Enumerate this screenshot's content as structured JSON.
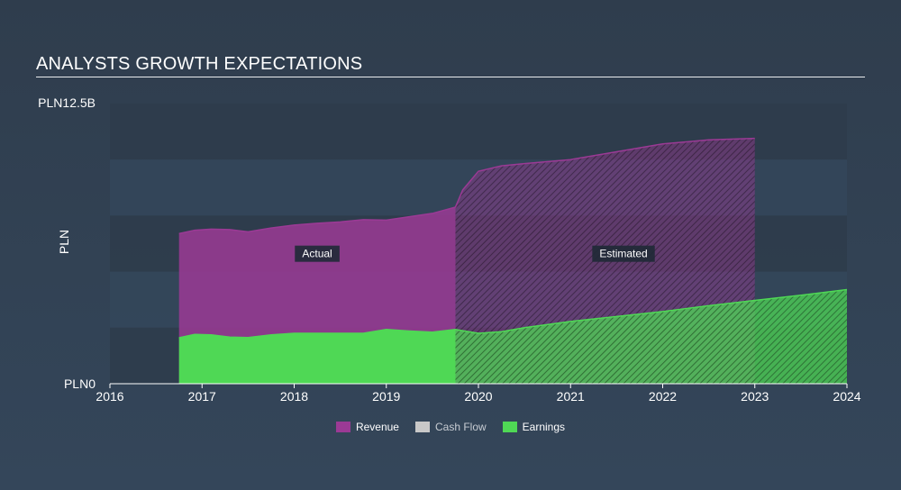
{
  "header": {
    "title": "ANALYSTS GROWTH EXPECTATIONS"
  },
  "colors": {
    "revenue": "#9b3a95",
    "cash_flow": "#c8c8c8",
    "earnings": "#4fd855",
    "band": "#2f3d4d",
    "label_bg": "#1f2a36"
  },
  "chart_data": {
    "type": "area",
    "title": "ANALYSTS GROWTH EXPECTATIONS",
    "ylabel": "PLN",
    "ytick_labels": [
      "PLN0",
      "PLN12.5B"
    ],
    "ylim": [
      0,
      12.5
    ],
    "xlim": [
      2016.0,
      2024.0
    ],
    "x_ticks": [
      2016,
      2017,
      2018,
      2019,
      2020,
      2021,
      2022,
      2023,
      2024
    ],
    "actual_end_x": 2019.75,
    "segment_labels": {
      "actual": "Actual",
      "estimated": "Estimated"
    },
    "grid": false,
    "legend_position": "bottom",
    "series": [
      {
        "name": "Revenue",
        "color": "#9b3a95",
        "points": [
          [
            2016.75,
            6.7
          ],
          [
            2016.92,
            6.85
          ],
          [
            2017.1,
            6.9
          ],
          [
            2017.3,
            6.88
          ],
          [
            2017.5,
            6.78
          ],
          [
            2017.75,
            6.95
          ],
          [
            2018.0,
            7.08
          ],
          [
            2018.25,
            7.16
          ],
          [
            2018.5,
            7.22
          ],
          [
            2018.75,
            7.32
          ],
          [
            2019.0,
            7.3
          ],
          [
            2019.25,
            7.45
          ],
          [
            2019.5,
            7.6
          ],
          [
            2019.75,
            7.88
          ],
          [
            2019.83,
            8.65
          ],
          [
            2020.0,
            9.48
          ],
          [
            2020.25,
            9.72
          ],
          [
            2020.5,
            9.82
          ],
          [
            2021.0,
            10.0
          ],
          [
            2021.5,
            10.35
          ],
          [
            2022.0,
            10.7
          ],
          [
            2022.5,
            10.88
          ],
          [
            2023.0,
            10.95
          ]
        ]
      },
      {
        "name": "Cash Flow",
        "color": "#c8c8c8",
        "points": []
      },
      {
        "name": "Earnings",
        "color": "#4fd855",
        "points": [
          [
            2016.75,
            2.05
          ],
          [
            2016.92,
            2.2
          ],
          [
            2017.1,
            2.18
          ],
          [
            2017.3,
            2.08
          ],
          [
            2017.5,
            2.06
          ],
          [
            2017.75,
            2.18
          ],
          [
            2018.0,
            2.25
          ],
          [
            2018.25,
            2.25
          ],
          [
            2018.5,
            2.25
          ],
          [
            2018.75,
            2.25
          ],
          [
            2019.0,
            2.42
          ],
          [
            2019.25,
            2.35
          ],
          [
            2019.5,
            2.3
          ],
          [
            2019.75,
            2.42
          ],
          [
            2020.0,
            2.25
          ],
          [
            2020.25,
            2.32
          ],
          [
            2020.5,
            2.5
          ],
          [
            2021.0,
            2.78
          ],
          [
            2021.5,
            3.0
          ],
          [
            2022.0,
            3.22
          ],
          [
            2022.5,
            3.48
          ],
          [
            2023.0,
            3.72
          ],
          [
            2023.5,
            3.95
          ],
          [
            2024.0,
            4.2
          ]
        ]
      }
    ]
  },
  "legend": {
    "items": [
      {
        "label": "Revenue",
        "color": "#9b3a95"
      },
      {
        "label": "Cash Flow",
        "color": "#c8c8c8"
      },
      {
        "label": "Earnings",
        "color": "#4fd855"
      }
    ]
  }
}
